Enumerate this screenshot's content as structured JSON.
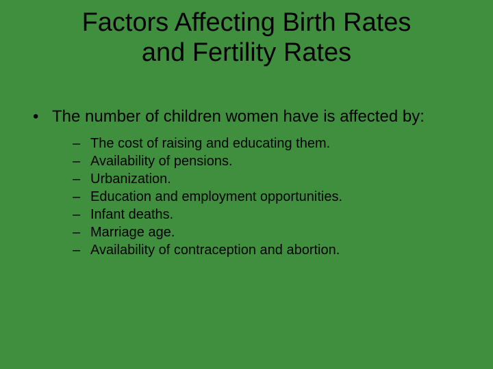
{
  "colors": {
    "background": "#3f8f3f",
    "text": "#000000"
  },
  "typography": {
    "family": "Comic Sans MS",
    "title_fontsize": 38,
    "body_fontsize": 24,
    "sub_fontsize": 20
  },
  "title_line1": "Factors Affecting Birth Rates",
  "title_line2": "and Fertility Rates",
  "main_bullet": {
    "marker": "•",
    "text": "The number of children women have is affected by:"
  },
  "sub_bullets": {
    "marker": "–",
    "items": [
      "The cost of raising and educating them.",
      "Availability of pensions.",
      "Urbanization.",
      "Education and employment opportunities.",
      "Infant deaths.",
      "Marriage age.",
      "Availability of contraception and abortion."
    ]
  }
}
